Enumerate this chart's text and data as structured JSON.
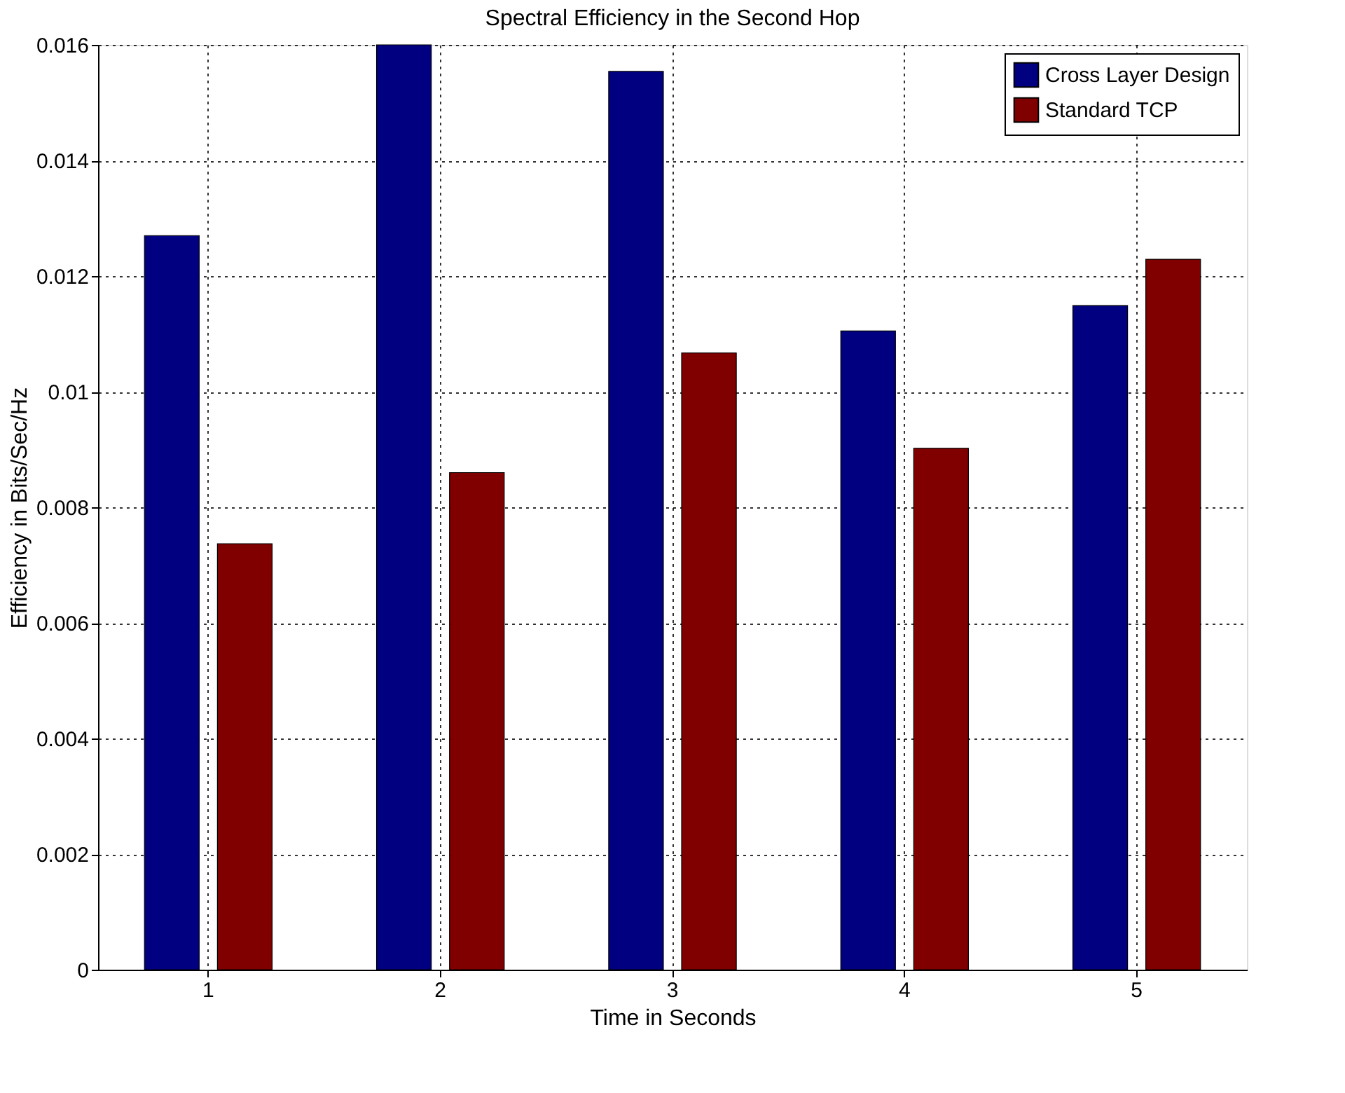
{
  "chart_data": {
    "type": "bar",
    "title": "Spectral Efficiency in the Second Hop",
    "xlabel": "Time in Seconds",
    "ylabel": "Efficiency in Bits/Sec/Hz",
    "categories": [
      "1",
      "2",
      "3",
      "4",
      "5"
    ],
    "series": [
      {
        "name": "Cross Layer Design",
        "color": "#000080",
        "values": [
          0.0127,
          0.016,
          0.01554,
          0.01105,
          0.01149
        ]
      },
      {
        "name": "Standard TCP",
        "color": "#800000",
        "values": [
          0.00737,
          0.0086,
          0.01067,
          0.00902,
          0.01229
        ]
      }
    ],
    "ylim": [
      0,
      0.016
    ],
    "yticks": [
      0,
      0.002,
      0.004,
      0.006,
      0.008,
      {
        "value": 0.01,
        "label": "0.01"
      },
      0.012,
      0.014,
      0.016
    ],
    "grid": true,
    "legend": "top right"
  }
}
